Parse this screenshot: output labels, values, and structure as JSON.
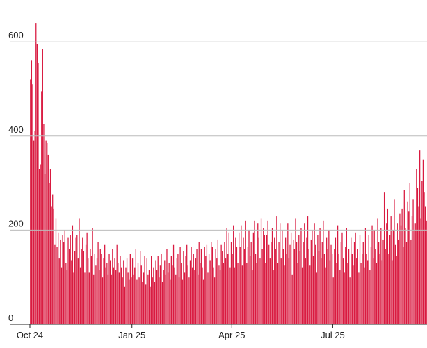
{
  "chart_data": {
    "type": "bar",
    "color": "#d91a40",
    "grid": true,
    "ylim": [
      0,
      680
    ],
    "yticks": [
      0,
      200,
      400,
      600
    ],
    "categories": [
      "Oct 24",
      null,
      null,
      null,
      null,
      null,
      null,
      null,
      null,
      null,
      null,
      null,
      null,
      null,
      null,
      null,
      null,
      null,
      null,
      null,
      null,
      null,
      null,
      null,
      null,
      null,
      null,
      null,
      null,
      null,
      null,
      null,
      null,
      null,
      null,
      null,
      null,
      null,
      null,
      null,
      null,
      null,
      null,
      null,
      null,
      null,
      null,
      null,
      null,
      null,
      null,
      null,
      null,
      null,
      null,
      null,
      null,
      null,
      null,
      null,
      null,
      null,
      null,
      null,
      null,
      null,
      null,
      null,
      null,
      null,
      null,
      null,
      null,
      null,
      null,
      null,
      null,
      null,
      null,
      null,
      null,
      null,
      null,
      null,
      null,
      null,
      null,
      null,
      null,
      null,
      null,
      null,
      "Jan 25",
      null,
      null,
      null,
      null,
      null,
      null,
      null,
      null,
      null,
      null,
      null,
      null,
      null,
      null,
      null,
      null,
      null,
      null,
      null,
      null,
      null,
      null,
      null,
      null,
      null,
      null,
      null,
      null,
      null,
      null,
      null,
      null,
      null,
      null,
      null,
      null,
      null,
      null,
      null,
      null,
      null,
      null,
      null,
      null,
      null,
      null,
      null,
      null,
      null,
      null,
      null,
      null,
      null,
      null,
      null,
      null,
      null,
      null,
      null,
      null,
      null,
      null,
      null,
      null,
      null,
      null,
      null,
      null,
      null,
      null,
      null,
      null,
      null,
      null,
      null,
      null,
      null,
      null,
      null,
      null,
      null,
      null,
      null,
      null,
      null,
      null,
      null,
      null,
      null,
      "Apr 25",
      null,
      null,
      null,
      null,
      null,
      null,
      null,
      null,
      null,
      null,
      null,
      null,
      null,
      null,
      null,
      null,
      null,
      null,
      null,
      null,
      null,
      null,
      null,
      null,
      null,
      null,
      null,
      null,
      null,
      null,
      null,
      null,
      null,
      null,
      null,
      null,
      null,
      null,
      null,
      null,
      null,
      null,
      null,
      null,
      null,
      null,
      null,
      null,
      null,
      null,
      null,
      null,
      null,
      null,
      null,
      null,
      null,
      null,
      null,
      null,
      null,
      null,
      null,
      null,
      null,
      null,
      null,
      null,
      null,
      null,
      null,
      null,
      null,
      null,
      null,
      null,
      null,
      null,
      null,
      null,
      null,
      null,
      null,
      null,
      null,
      null,
      null,
      null,
      null,
      null,
      "Jul 25",
      null,
      null,
      null,
      null,
      null,
      null,
      null,
      null,
      null,
      null,
      null,
      null,
      null,
      null,
      null,
      null,
      null,
      null,
      null,
      null,
      null,
      null,
      null,
      null,
      null,
      null,
      null,
      null,
      null,
      null,
      null,
      null,
      null,
      null,
      null,
      null,
      null,
      null,
      null,
      null,
      null,
      null,
      null,
      null,
      null,
      null,
      null,
      null,
      null,
      null,
      null,
      null,
      null,
      null,
      null,
      null,
      null,
      null,
      null,
      null,
      null,
      null,
      null,
      null,
      null,
      null,
      null,
      null,
      null,
      null,
      null,
      null,
      null,
      null,
      null,
      null,
      null,
      null,
      null,
      null,
      null,
      null,
      null,
      null
    ],
    "values": [
      520,
      560,
      510,
      390,
      410,
      640,
      595,
      555,
      330,
      340,
      495,
      585,
      425,
      320,
      390,
      385,
      360,
      300,
      330,
      250,
      275,
      245,
      170,
      225,
      165,
      195,
      140,
      180,
      120,
      190,
      175,
      200,
      130,
      115,
      185,
      160,
      190,
      135,
      210,
      110,
      155,
      185,
      190,
      140,
      225,
      120,
      160,
      185,
      155,
      110,
      170,
      195,
      140,
      110,
      160,
      145,
      205,
      105,
      150,
      125,
      140,
      175,
      115,
      160,
      150,
      100,
      140,
      170,
      120,
      130,
      105,
      150,
      135,
      105,
      160,
      120,
      140,
      115,
      170,
      130,
      110,
      145,
      120,
      100,
      135,
      80,
      120,
      140,
      110,
      95,
      150,
      100,
      140,
      105,
      120,
      160,
      95,
      130,
      100,
      155,
      125,
      90,
      110,
      145,
      85,
      140,
      105,
      115,
      80,
      145,
      100,
      120,
      90,
      135,
      115,
      145,
      100,
      125,
      150,
      90,
      115,
      135,
      105,
      160,
      110,
      130,
      95,
      145,
      125,
      170,
      120,
      105,
      140,
      150,
      100,
      165,
      130,
      95,
      155,
      110,
      145,
      170,
      125,
      100,
      135,
      165,
      120,
      150,
      115,
      140,
      160,
      105,
      175,
      130,
      160,
      120,
      95,
      165,
      145,
      170,
      110,
      150,
      135,
      175,
      165,
      120,
      100,
      160,
      140,
      180,
      125,
      115,
      170,
      155,
      130,
      175,
      140,
      205,
      150,
      195,
      120,
      175,
      150,
      210,
      120,
      185,
      165,
      130,
      195,
      165,
      210,
      125,
      185,
      160,
      220,
      130,
      165,
      200,
      145,
      175,
      115,
      195,
      220,
      150,
      130,
      215,
      185,
      140,
      225,
      160,
      205,
      190,
      130,
      190,
      220,
      170,
      140,
      175,
      205,
      115,
      185,
      160,
      230,
      130,
      175,
      215,
      140,
      200,
      160,
      125,
      185,
      150,
      215,
      140,
      170,
      195,
      105,
      180,
      160,
      225,
      175,
      130,
      190,
      155,
      205,
      120,
      175,
      215,
      140,
      185,
      230,
      160,
      125,
      180,
      200,
      145,
      215,
      170,
      110,
      190,
      155,
      205,
      140,
      175,
      220,
      150,
      120,
      185,
      160,
      200,
      135,
      170,
      150,
      100,
      160,
      185,
      130,
      210,
      150,
      115,
      175,
      195,
      140,
      110,
      165,
      205,
      130,
      160,
      100,
      185,
      150,
      125,
      175,
      195,
      140,
      160,
      110,
      190,
      130,
      150,
      175,
      120,
      205,
      150,
      135,
      190,
      115,
      165,
      210,
      140,
      200,
      160,
      130,
      225,
      175,
      150,
      205,
      135,
      180,
      280,
      160,
      215,
      245,
      150,
      190,
      230,
      135,
      200,
      265,
      170,
      145,
      215,
      180,
      235,
      210,
      245,
      165,
      285,
      205,
      175,
      260,
      240,
      300,
      180,
      230,
      265,
      200,
      215,
      330,
      290,
      250,
      370,
      225,
      305,
      350,
      280,
      250,
      220
    ]
  }
}
